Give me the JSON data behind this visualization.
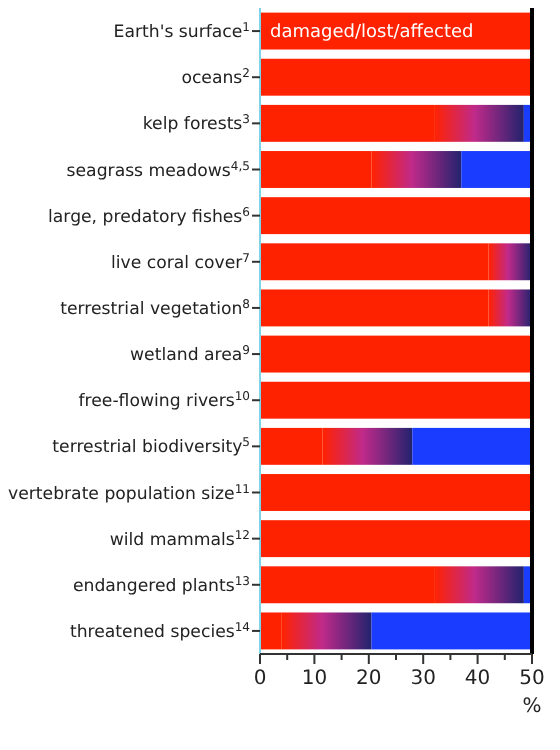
{
  "chart_data": {
    "type": "bar",
    "orientation": "horizontal",
    "stacked": true,
    "categories": [
      "Earth's surface$^{1}$",
      "oceans$^{2}$",
      "kelp forests$^{3}$",
      "seagrass meadows$^{4,5}$",
      "large, predatory fishes$^{6}$",
      "live coral cover$^{7}$",
      "terrestrial vegetation$^{8}$",
      "wetland area$^{9}$",
      "free-flowing rivers$^{10}$",
      "terrestrial biodiversity$^{5}$",
      "vertebrate population size$^{11}$",
      "wild mammals$^{12}$",
      "endangered plants$^{13}$",
      "threatened species$^{14}$"
    ],
    "series": [
      {
        "name": "damaged/lost/affected",
        "color": "#ff2200",
        "values": [
          50,
          50,
          32,
          20.5,
          50,
          42,
          42,
          50,
          50,
          11.5,
          50,
          50,
          32,
          4
        ]
      },
      {
        "color": "#22236e",
        "values": [
          0,
          0,
          16.5,
          16.5,
          0,
          8,
          8,
          0,
          0,
          16.5,
          0,
          0,
          16.5,
          16.5
        ]
      },
      {
        "color": "#1a3cff",
        "values": [
          0,
          0,
          1.5,
          13,
          0,
          0,
          0,
          0,
          0,
          22,
          0,
          0,
          1.5,
          29.5
        ]
      }
    ],
    "xlim": [
      0,
      50
    ],
    "xticks": [
      0,
      {
        "value": 5,
        "label": null
      },
      10,
      {
        "value": 15,
        "label": null
      },
      20,
      {
        "value": 25,
        "label": null
      },
      30,
      {
        "value": 35,
        "label": null
      },
      40,
      {
        "value": 45,
        "label": null
      },
      50
    ],
    "xlabel": "%",
    "ref_lines": [
      {
        "axis": "x",
        "value": 50,
        "color": "#000000"
      }
    ]
  }
}
